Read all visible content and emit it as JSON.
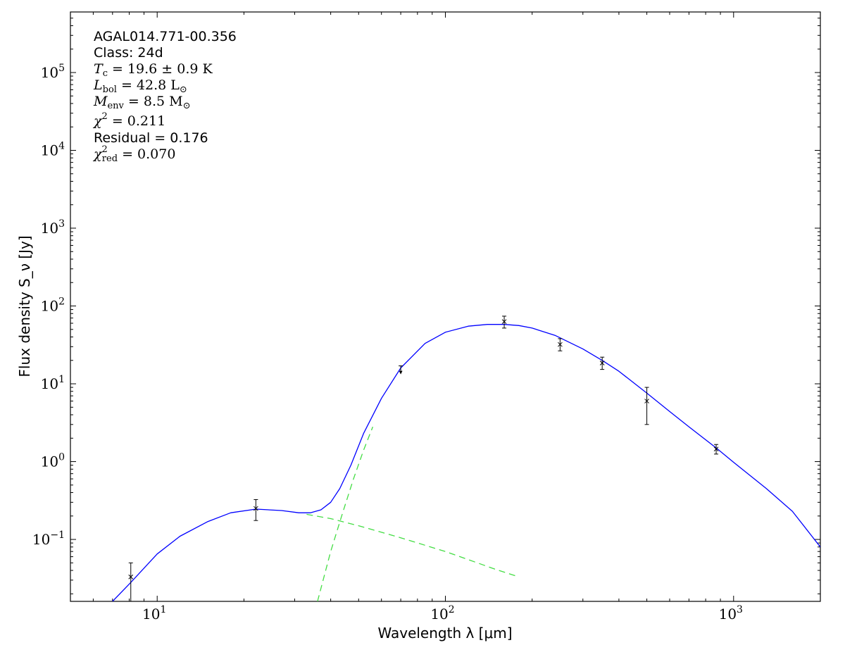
{
  "chart_data": {
    "type": "line",
    "xscale": "log",
    "yscale": "log",
    "xlim": [
      5,
      2000
    ],
    "ylim": [
      0.016,
      600000
    ],
    "xlabel": "Wavelength λ [μm]",
    "ylabel": "Flux density S_ν [Jy]",
    "x_ticks": [
      {
        "value": 10,
        "base": "10",
        "exp": "1"
      },
      {
        "value": 100,
        "base": "10",
        "exp": "2"
      },
      {
        "value": 1000,
        "base": "10",
        "exp": "3"
      }
    ],
    "y_ticks": [
      {
        "value": 0.1,
        "base": "10",
        "exp": "−1"
      },
      {
        "value": 1,
        "base": "10",
        "exp": "0"
      },
      {
        "value": 10,
        "base": "10",
        "exp": "1"
      },
      {
        "value": 100,
        "base": "10",
        "exp": "2"
      },
      {
        "value": 1000,
        "base": "10",
        "exp": "3"
      },
      {
        "value": 10000,
        "base": "10",
        "exp": "4"
      },
      {
        "value": 100000,
        "base": "10",
        "exp": "5"
      }
    ],
    "annotations": {
      "source": "AGAL014.771-00.356",
      "class": "Class: 24d",
      "tc_symbol": "T",
      "tc_sub": "c",
      "tc_rest": " = 19.6 ± 0.9 K",
      "lbol_symbol": "L",
      "lbol_sub": "bol",
      "lbol_rest": " = 42.8 L",
      "lbol_unit_sub": "⊙",
      "menv_symbol": "M",
      "menv_sub": "env",
      "menv_rest": " = 8.5 M",
      "menv_unit_sub": "⊙",
      "chi2_symbol": "χ",
      "chi2_sup": "2",
      "chi2_rest": " = 0.211",
      "residual": "Residual = 0.176",
      "chired_symbol": "χ",
      "chired_sup": "2",
      "chired_sub": "red",
      "chired_rest": " = 0.070"
    },
    "series": [
      {
        "style": "solid",
        "color": "#0000ff",
        "x": [
          7,
          8.1,
          10,
          12,
          15,
          18,
          22,
          27,
          31,
          34,
          37,
          40,
          43,
          47,
          52,
          60,
          70,
          85,
          100,
          120,
          140,
          160,
          180,
          200,
          240,
          300,
          350,
          400,
          500,
          600,
          700,
          880,
          1000,
          1300,
          1600,
          2000
        ],
        "y": [
          0.016,
          0.028,
          0.065,
          0.11,
          0.17,
          0.22,
          0.245,
          0.235,
          0.22,
          0.22,
          0.24,
          0.3,
          0.45,
          0.9,
          2.3,
          6.5,
          16,
          33,
          46,
          55,
          58,
          58,
          56,
          52,
          42,
          28,
          20,
          14.5,
          7.6,
          4.4,
          2.8,
          1.45,
          0.98,
          0.45,
          0.23,
          0.08
        ]
      },
      {
        "style": "dashed",
        "color": "#44dd44",
        "x": [
          33,
          40,
          50,
          70,
          100,
          150,
          180
        ],
        "y": [
          0.21,
          0.185,
          0.15,
          0.105,
          0.07,
          0.041,
          0.033
        ]
      },
      {
        "style": "dashed",
        "color": "#44dd44",
        "x": [
          36,
          40,
          44,
          48,
          52,
          56
        ],
        "y": [
          0.016,
          0.07,
          0.22,
          0.6,
          1.4,
          2.8
        ]
      }
    ],
    "points": [
      {
        "x": 8.1,
        "y": 0.033,
        "err_low": 0.016,
        "err_high": 0.05
      },
      {
        "x": 22,
        "y": 0.25,
        "err_low": 0.175,
        "err_high": 0.325
      },
      {
        "x": 160,
        "y": 63,
        "err_low": 52,
        "err_high": 74
      },
      {
        "x": 250,
        "y": 32,
        "err_low": 26.5,
        "err_high": 38
      },
      {
        "x": 350,
        "y": 18.5,
        "err_low": 15.3,
        "err_high": 22
      },
      {
        "x": 500,
        "y": 6,
        "err_low": 3,
        "err_high": 9
      },
      {
        "x": 870,
        "y": 1.45,
        "err_low": 1.25,
        "err_high": 1.66
      }
    ],
    "upper_limits": [
      {
        "x": 70,
        "y": 17
      }
    ]
  }
}
